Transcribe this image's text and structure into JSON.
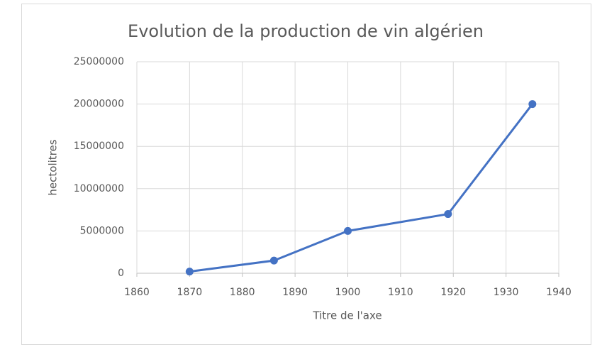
{
  "chart_data": {
    "type": "line",
    "title": "Evolution de la production de vin algérien",
    "x_label": "Titre de l'axe",
    "y_label": "hectolitres",
    "x": [
      1870,
      1886,
      1900,
      1919,
      1935
    ],
    "values": [
      200000,
      1500000,
      5000000,
      7000000,
      20000000
    ],
    "color": "#4472c4",
    "xlim": [
      1860,
      1940
    ],
    "xticks": [
      1860,
      1870,
      1880,
      1890,
      1900,
      1910,
      1920,
      1930,
      1940
    ],
    "ylim": [
      0,
      25000000
    ],
    "yticks": [
      0,
      5000000,
      10000000,
      15000000,
      20000000,
      25000000
    ],
    "grid": true
  }
}
